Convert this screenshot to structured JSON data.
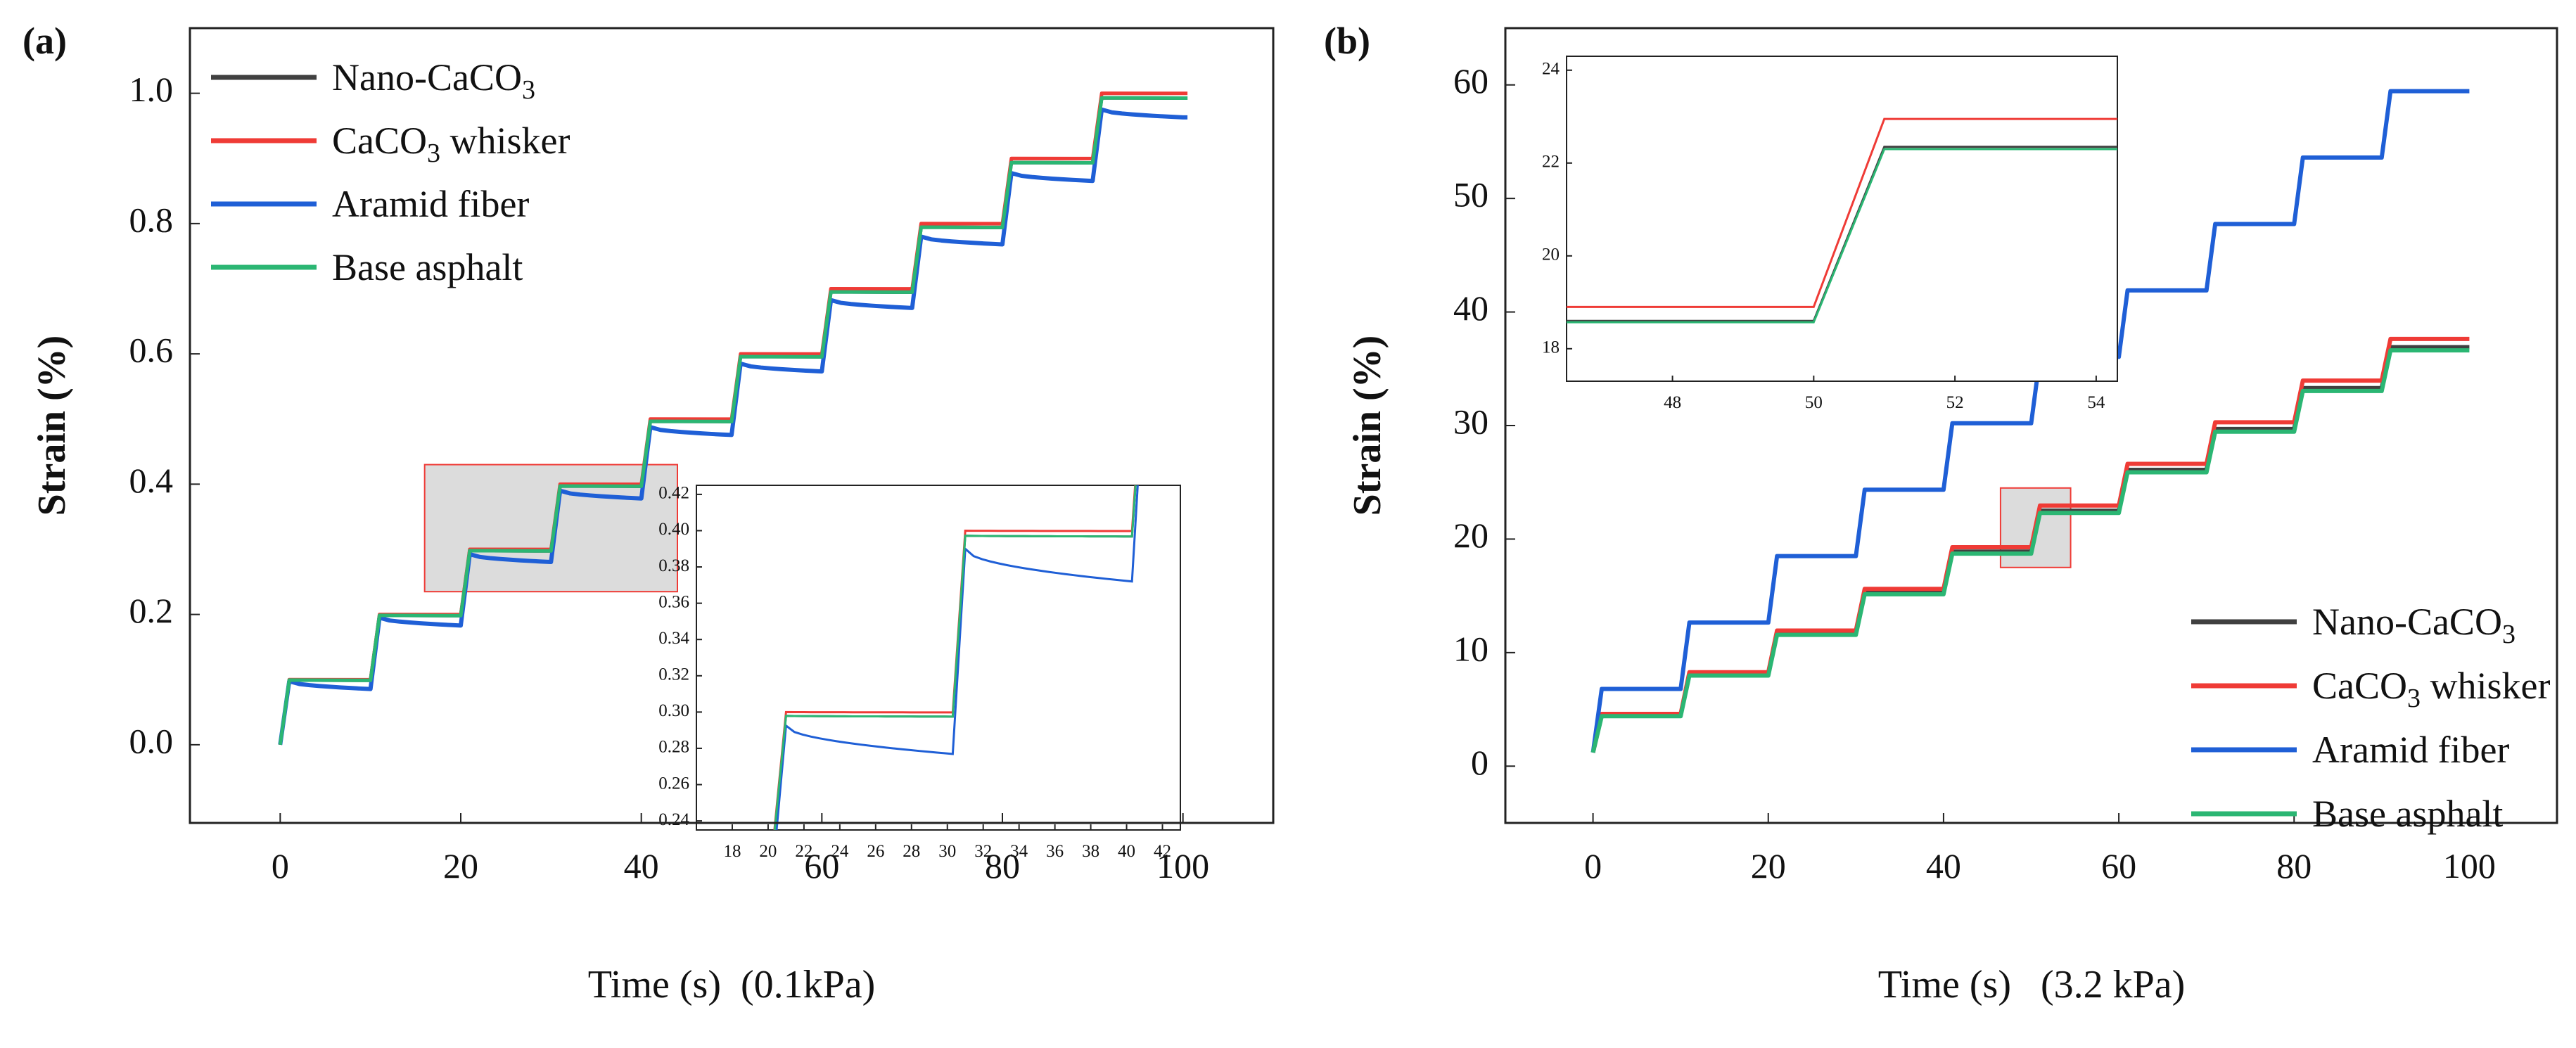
{
  "chart_data": [
    {
      "panel_label": "(a)",
      "type": "line",
      "xlabel": "Time (s)  (0.1kPa)",
      "ylabel": "Strain (%)",
      "xlim": [
        -10,
        110
      ],
      "ylim": [
        -0.12,
        1.1
      ],
      "xticks": [
        0,
        20,
        40,
        60,
        80,
        100
      ],
      "yticks": [
        0.0,
        0.2,
        0.4,
        0.6,
        0.8,
        1.0
      ],
      "ytick_decimals": 1,
      "legend": "top-left",
      "series": [
        {
          "name": "Nano-CaCO",
          "sub": "3",
          "suffix": "",
          "color": "#404040",
          "step": 0.0993,
          "creep": 0.0004
        },
        {
          "name": "CaCO",
          "sub": "3",
          "suffix": " whisker",
          "color": "#ef3b36",
          "step": 0.1,
          "creep": 0.0002
        },
        {
          "name": "Aramid fiber",
          "sub": "",
          "suffix": "",
          "color": "#1f5fd6",
          "step": 0.0975,
          "creep": 0.012
        },
        {
          "name": "Base asphalt",
          "sub": "",
          "suffix": "",
          "color": "#2bb673",
          "step": 0.0993,
          "creep": 0.0004
        }
      ],
      "zoom_region": {
        "x": [
          16,
          44
        ],
        "y": [
          0.235,
          0.43
        ]
      },
      "inset": {
        "xlim": [
          16,
          43
        ],
        "ylim": [
          0.235,
          0.425
        ],
        "xticks": [
          18,
          20,
          22,
          24,
          26,
          28,
          30,
          32,
          34,
          36,
          38,
          40,
          42
        ],
        "yticks": [
          0.24,
          0.26,
          0.28,
          0.3,
          0.32,
          0.34,
          0.36,
          0.38,
          0.4,
          0.42
        ],
        "ytick_decimals": 2
      }
    },
    {
      "panel_label": "(b)",
      "type": "line",
      "xlabel": "Time (s)   (3.2 kPa)",
      "ylabel": "Strain (%)",
      "xlim": [
        -10,
        110
      ],
      "ylim": [
        -5,
        65
      ],
      "xticks": [
        0,
        20,
        40,
        60,
        80,
        100
      ],
      "yticks": [
        0,
        10,
        20,
        30,
        40,
        50,
        60
      ],
      "ytick_decimals": 0,
      "legend": "bottom-right",
      "series": [
        {
          "name": "Nano-CaCO",
          "sub": "3",
          "suffix": "",
          "color": "#404040",
          "first": 4.5,
          "step": 3.6
        },
        {
          "name": "CaCO",
          "sub": "3",
          "suffix": " whisker",
          "color": "#ef3b36",
          "first": 4.6,
          "step": 3.67
        },
        {
          "name": "Aramid fiber",
          "sub": "",
          "suffix": "",
          "color": "#1f5fd6",
          "first": 6.8,
          "step": 5.85
        },
        {
          "name": "Base asphalt",
          "sub": "",
          "suffix": "",
          "color": "#2bb673",
          "first": 4.4,
          "step": 3.58
        }
      ],
      "zoom_region": {
        "x": [
          46.5,
          54.5
        ],
        "y": [
          17.5,
          24.5
        ]
      },
      "inset": {
        "xlim": [
          46.5,
          54.3
        ],
        "ylim": [
          17.3,
          24.3
        ],
        "xticks": [
          48,
          50,
          52,
          54
        ],
        "yticks": [
          18,
          20,
          22,
          24
        ],
        "ytick_decimals": 0
      }
    }
  ]
}
